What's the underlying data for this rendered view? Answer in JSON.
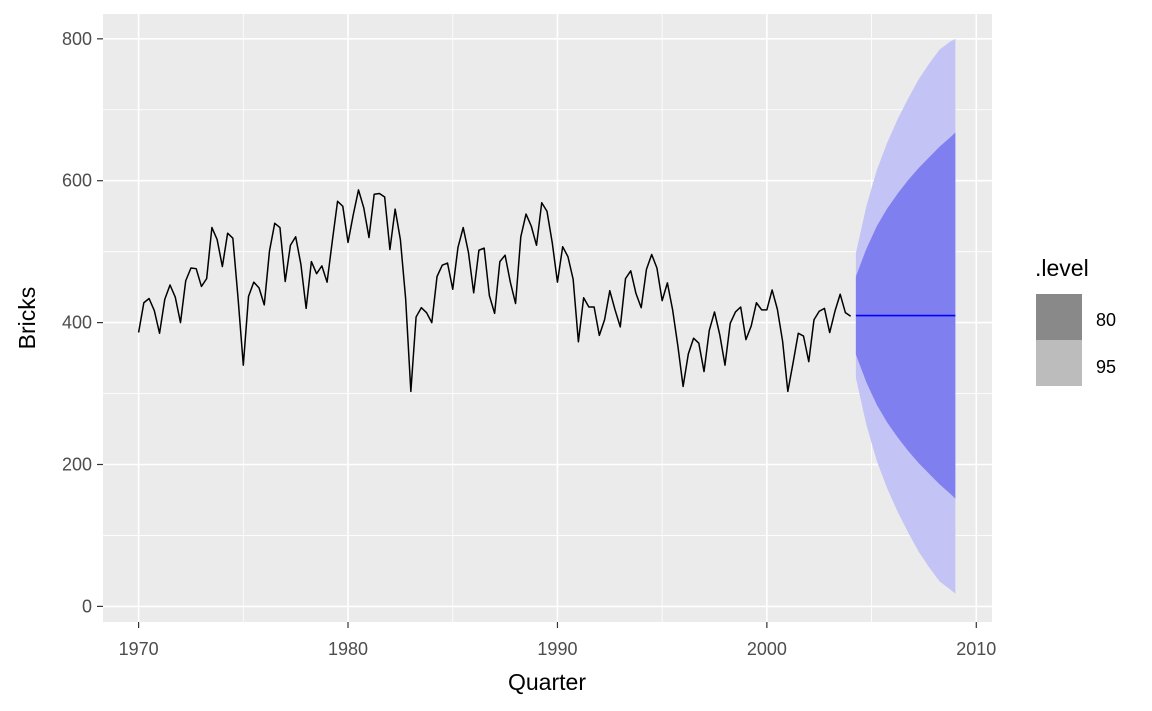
{
  "chart_data": {
    "type": "line",
    "xlabel": "Quarter",
    "ylabel": "Bricks",
    "xlim": [
      1968.3,
      2010.75
    ],
    "ylim": [
      -22,
      835
    ],
    "x_ticks": [
      1970,
      1980,
      1990,
      2000,
      2010
    ],
    "y_ticks": [
      0,
      200,
      400,
      600,
      800
    ],
    "grid": true,
    "legend": {
      "title": ".level",
      "placement": "right",
      "entries": [
        {
          "label": "80",
          "color": "#898989"
        },
        {
          "label": "95",
          "color": "#bcbcbc"
        }
      ]
    },
    "series": [
      {
        "x_start": 1970.0,
        "step": 0.25,
        "color": "#000000",
        "values": [
          386,
          428,
          434,
          417,
          385,
          433,
          453,
          436,
          400,
          459,
          477,
          476,
          451,
          462,
          534,
          517,
          479,
          526,
          519,
          434,
          340,
          437,
          457,
          449,
          425,
          501,
          540,
          534,
          458,
          509,
          521,
          482,
          420,
          486,
          469,
          480,
          457,
          515,
          571,
          564,
          513,
          552,
          587,
          562,
          520,
          581,
          582,
          577,
          503,
          560,
          517,
          434,
          303,
          408,
          421,
          414,
          400,
          465,
          481,
          484,
          447,
          506,
          534,
          499,
          442,
          502,
          505,
          438,
          413,
          486,
          495,
          457,
          427,
          521,
          553,
          536,
          509,
          569,
          557,
          513,
          457,
          507,
          493,
          461,
          373,
          435,
          422,
          422,
          382,
          404,
          445,
          418,
          394,
          462,
          473,
          441,
          421,
          475,
          496,
          477,
          431,
          456,
          418,
          367,
          310,
          356,
          378,
          371,
          331,
          389,
          415,
          383,
          340,
          399,
          415,
          422,
          376,
          395,
          428,
          418,
          418,
          446,
          419,
          374,
          303,
          343,
          385,
          381,
          345,
          404,
          416,
          420,
          386,
          416,
          440,
          414,
          409
        ]
      },
      {
        "name": "forecast",
        "color": "#0000ff",
        "x": [
          2004.25,
          2009.0
        ],
        "values": [
          410,
          410
        ]
      }
    ],
    "forecast_intervals": {
      "x": [
        2004.25,
        2004.75,
        2005.25,
        2005.75,
        2006.25,
        2006.75,
        2007.25,
        2007.75,
        2008.25,
        2008.75,
        2009.0
      ],
      "level_80": {
        "color": "#7f7fef",
        "lower": [
          355,
          316,
          284,
          259,
          238,
          219,
          202,
          187,
          172,
          159,
          152
        ],
        "upper": [
          465,
          504,
          536,
          561,
          582,
          601,
          618,
          633,
          648,
          661,
          668
        ]
      },
      "level_95": {
        "color": "#c3c3f5",
        "lower": [
          322,
          256,
          205,
          166,
          133,
          104,
          77,
          55,
          35,
          24,
          18
        ],
        "upper": [
          498,
          564,
          615,
          654,
          687,
          716,
          743,
          765,
          785,
          796,
          800
        ]
      }
    }
  }
}
